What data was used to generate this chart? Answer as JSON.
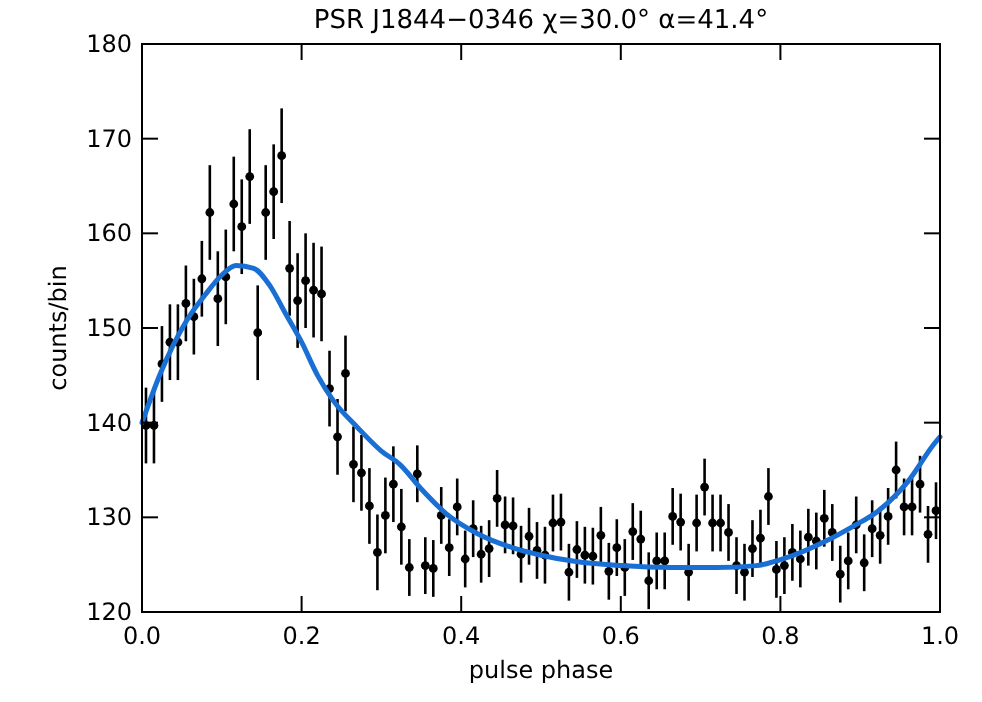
{
  "chart_data": {
    "type": "scatter",
    "title": "PSR J1844−0346   χ=30.0° α=41.4°",
    "xlabel": "pulse phase",
    "ylabel": "counts/bin",
    "xlim": [
      0,
      1
    ],
    "ylim": [
      120,
      180
    ],
    "xticks": [
      {
        "value": 0,
        "label": "0.0"
      },
      {
        "value": 0.2,
        "label": "0.2"
      },
      {
        "value": 0.4,
        "label": "0.4"
      },
      {
        "value": 0.6,
        "label": "0.6"
      },
      {
        "value": 0.8,
        "label": "0.8"
      },
      {
        "value": 1,
        "label": "1.0"
      }
    ],
    "yticks": [
      120,
      130,
      140,
      150,
      160,
      170,
      180
    ],
    "grid": false,
    "series": [
      {
        "color": "#000000",
        "marker": "circle",
        "x": [
          0.005,
          0.015,
          0.025,
          0.035,
          0.045,
          0.055,
          0.065,
          0.075,
          0.085,
          0.095,
          0.105,
          0.115,
          0.125,
          0.135,
          0.145,
          0.155,
          0.165,
          0.175,
          0.185,
          0.195,
          0.205,
          0.215,
          0.225,
          0.235,
          0.245,
          0.255,
          0.265,
          0.275,
          0.285,
          0.295,
          0.305,
          0.315,
          0.325,
          0.335,
          0.345,
          0.355,
          0.365,
          0.375,
          0.385,
          0.395,
          0.405,
          0.415,
          0.425,
          0.435,
          0.445,
          0.455,
          0.465,
          0.475,
          0.485,
          0.495,
          0.505,
          0.515,
          0.525,
          0.535,
          0.545,
          0.555,
          0.565,
          0.575,
          0.585,
          0.595,
          0.605,
          0.615,
          0.625,
          0.635,
          0.645,
          0.655,
          0.665,
          0.675,
          0.685,
          0.695,
          0.705,
          0.715,
          0.725,
          0.735,
          0.745,
          0.755,
          0.765,
          0.775,
          0.785,
          0.795,
          0.805,
          0.815,
          0.825,
          0.835,
          0.845,
          0.855,
          0.865,
          0.875,
          0.885,
          0.895,
          0.905,
          0.915,
          0.925,
          0.935,
          0.945,
          0.955,
          0.965,
          0.975,
          0.985,
          0.995
        ],
        "values": [
          139.7,
          139.7,
          146.2,
          148.5,
          148.5,
          152.6,
          151.2,
          155.2,
          162.2,
          153.1,
          155.4,
          163.1,
          160.7,
          166.0,
          149.5,
          162.2,
          164.4,
          168.2,
          156.3,
          152.9,
          155.0,
          154.0,
          153.6,
          143.6,
          138.5,
          145.2,
          135.6,
          134.7,
          131.2,
          126.3,
          130.2,
          133.5,
          129.0,
          124.7,
          134.6,
          124.9,
          124.6,
          130.2,
          126.8,
          131.1,
          125.6,
          128.8,
          126.1,
          126.7,
          132.0,
          129.2,
          129.1,
          126.1,
          128.0,
          126.5,
          126.0,
          129.4,
          129.5,
          124.2,
          126.6,
          126.0,
          125.9,
          128.1,
          124.3,
          126.8,
          124.7,
          128.5,
          127.7,
          123.3,
          125.4,
          125.4,
          130.1,
          129.5,
          124.2,
          129.4,
          133.2,
          129.4,
          129.4,
          128.4,
          124.9,
          124.2,
          126.7,
          127.8,
          132.2,
          124.5,
          124.9,
          126.3,
          125.6,
          127.9,
          127.5,
          129.9,
          128.4,
          124.0,
          125.4,
          129.2,
          125.2,
          128.8,
          128.1,
          130.1,
          135.0,
          131.1,
          131.1,
          133.5,
          128.2,
          130.7
        ],
        "errors": [
          4,
          4,
          4,
          4,
          4,
          4,
          4,
          4,
          5,
          5,
          5,
          5,
          5,
          5,
          5,
          5,
          5,
          5,
          5,
          5,
          5,
          5,
          5,
          4,
          4,
          4,
          4,
          4,
          4,
          4,
          4,
          4,
          4,
          3,
          3,
          3,
          3,
          3,
          3,
          3,
          3,
          3,
          3,
          3,
          3,
          3,
          3,
          3,
          3,
          3,
          3,
          3,
          3,
          3,
          3,
          3,
          3,
          3,
          3,
          3,
          3,
          3,
          3,
          3,
          3,
          3,
          3,
          3,
          3,
          3,
          3,
          3,
          3,
          3,
          3,
          3,
          3,
          3,
          3,
          3,
          3,
          3,
          3,
          3,
          3,
          3,
          3,
          3,
          3,
          3,
          3,
          3,
          3,
          3,
          3,
          3,
          3,
          3,
          3,
          3
        ]
      },
      {
        "type": "line",
        "color": "#1a6fd4",
        "line_style": "solid",
        "x": [
          0,
          0.023,
          0.056,
          0.08,
          0.1,
          0.118,
          0.14,
          0.16,
          0.18,
          0.2,
          0.22,
          0.24,
          0.27,
          0.3,
          0.323,
          0.35,
          0.381,
          0.42,
          0.464,
          0.5,
          0.546,
          0.6,
          0.663,
          0.72,
          0.77,
          0.81,
          0.857,
          0.89,
          0.923,
          0.96,
          0.993,
          1.0
        ],
        "values": [
          140,
          145.2,
          150.8,
          153.6,
          155.6,
          156.6,
          156.3,
          154.5,
          151.5,
          148.5,
          145,
          142.3,
          139.5,
          137,
          135.6,
          133,
          130.4,
          128.3,
          126.8,
          126,
          125.3,
          124.9,
          124.7,
          124.7,
          124.9,
          125.8,
          127.5,
          129,
          130.7,
          133.8,
          137.8,
          138.5
        ]
      }
    ]
  }
}
